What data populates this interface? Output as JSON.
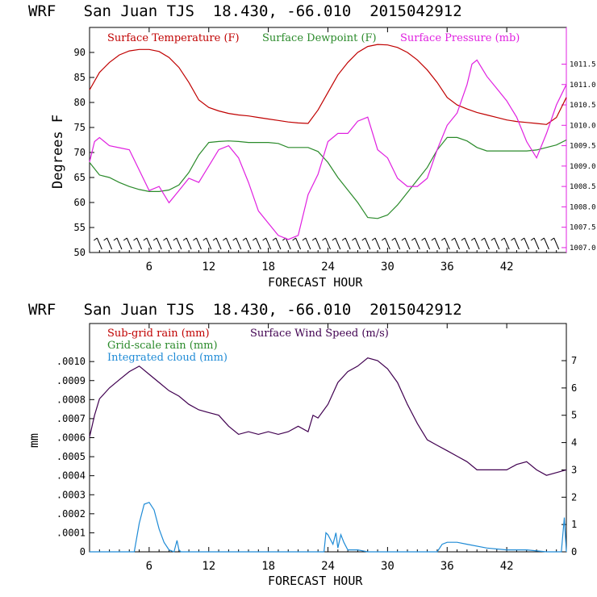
{
  "chart_data": [
    {
      "type": "line",
      "title": "WRF   San Juan TJS  18.430, -66.010  2015042912",
      "xlabel": "FORECAST HOUR",
      "ylabel": "Degrees F",
      "xlim": [
        0,
        48
      ],
      "ylim": [
        50,
        95
      ],
      "xticks": [
        "6",
        "12",
        "18",
        "24",
        "30",
        "36",
        "42"
      ],
      "yticks": [
        "50",
        "55",
        "60",
        "65",
        "70",
        "75",
        "80",
        "85",
        "90"
      ],
      "y2ticks": [
        "1007.0",
        "1007.5",
        "1008.0",
        "1008.5",
        "1009.0",
        "1009.5",
        "1010.0",
        "1010.5",
        "1011.0",
        "1011.5"
      ],
      "y2lim": [
        1006.88,
        1012.4
      ],
      "colors": {
        "temperature": "#c00000",
        "dewpoint": "#2a8a2a",
        "pressure": "#e020e0",
        "axis": "#000000",
        "right_axis": "#e020e0"
      },
      "legend": {
        "temperature": "Surface Temperature (F)",
        "dewpoint": "Surface Dewpoint (F)",
        "pressure": "Surface Pressure (mb)"
      },
      "series": [
        {
          "name": "Surface Temperature (F)",
          "axis": "left",
          "x": [
            0,
            1,
            2,
            3,
            4,
            5,
            6,
            7,
            8,
            9,
            10,
            11,
            12,
            13,
            14,
            15,
            16,
            17,
            18,
            19,
            20,
            21,
            22,
            23,
            24,
            25,
            26,
            27,
            28,
            29,
            30,
            31,
            32,
            33,
            34,
            35,
            36,
            37,
            38,
            39,
            40,
            41,
            42,
            43,
            44,
            45,
            46,
            47,
            48
          ],
          "y": [
            82.5,
            86,
            88,
            89.5,
            90.3,
            90.6,
            90.6,
            90.2,
            89,
            87,
            84,
            80.5,
            79,
            78.3,
            77.8,
            77.5,
            77.3,
            77,
            76.7,
            76.4,
            76.1,
            75.9,
            75.8,
            78.5,
            82,
            85.5,
            88,
            90,
            91.2,
            91.6,
            91.5,
            91,
            90,
            88.5,
            86.5,
            84,
            81,
            79.5,
            78.7,
            78,
            77.5,
            77,
            76.5,
            76.2,
            76,
            75.8,
            75.6,
            77,
            81
          ]
        },
        {
          "name": "Surface Dewpoint (F)",
          "axis": "left",
          "x": [
            0,
            1,
            2,
            3,
            4,
            5,
            6,
            7,
            8,
            9,
            10,
            11,
            12,
            13,
            14,
            15,
            16,
            17,
            18,
            19,
            20,
            21,
            22,
            23,
            24,
            25,
            26,
            27,
            28,
            29,
            30,
            31,
            32,
            33,
            34,
            35,
            36,
            37,
            38,
            39,
            40,
            41,
            42,
            43,
            44,
            45,
            46,
            47,
            48
          ],
          "y": [
            68,
            65.5,
            65,
            64,
            63.2,
            62.6,
            62.2,
            62.2,
            62.5,
            63.5,
            66,
            69.5,
            72,
            72.2,
            72.3,
            72.2,
            72,
            72,
            72,
            71.8,
            71,
            71,
            71,
            70.2,
            68,
            65,
            62.5,
            60,
            57,
            56.8,
            57.5,
            59.5,
            62,
            64.5,
            67,
            70.5,
            73,
            73,
            72.3,
            71,
            70.3,
            70.3,
            70.3,
            70.3,
            70.3,
            70.5,
            71,
            71.5,
            72.5
          ]
        },
        {
          "name": "Surface Pressure (mb)",
          "axis": "right",
          "x": [
            0,
            0.5,
            1,
            2,
            3,
            4,
            5,
            6,
            7,
            8,
            9,
            10,
            11,
            12,
            13,
            14,
            15,
            16,
            17,
            18,
            19,
            20,
            21,
            22,
            23,
            24,
            25,
            26,
            27,
            28,
            29,
            30,
            31,
            32,
            33,
            34,
            35,
            36,
            37,
            38,
            38.5,
            39,
            40,
            41,
            42,
            43,
            44,
            45,
            46,
            47,
            48
          ],
          "y": [
            1009.1,
            1009.6,
            1009.7,
            1009.5,
            1009.45,
            1009.4,
            1008.9,
            1008.4,
            1008.5,
            1008.1,
            1008.4,
            1008.7,
            1008.6,
            1009.0,
            1009.4,
            1009.5,
            1009.2,
            1008.6,
            1007.9,
            1007.6,
            1007.3,
            1007.2,
            1007.3,
            1008.3,
            1008.8,
            1009.6,
            1009.8,
            1009.8,
            1010.1,
            1010.2,
            1009.4,
            1009.2,
            1008.7,
            1008.5,
            1008.5,
            1008.7,
            1009.4,
            1010.0,
            1010.3,
            1011.0,
            1011.5,
            1011.6,
            1011.2,
            1010.9,
            1010.6,
            1010.2,
            1009.6,
            1009.2,
            1009.8,
            1010.5,
            1011.0
          ]
        }
      ],
      "wind_barbs": "row of wind barbs along bottom of plot"
    },
    {
      "type": "line",
      "title": "WRF   San Juan TJS  18.430, -66.010  2015042912",
      "xlabel": "FORECAST HOUR",
      "ylabel": "mm",
      "xlim": [
        0,
        48
      ],
      "ylim": [
        0,
        0.0012
      ],
      "xticks": [
        "6",
        "12",
        "18",
        "24",
        "30",
        "36",
        "42"
      ],
      "yticks": [
        "0",
        ".0001",
        ".0002",
        ".0003",
        ".0004",
        ".0005",
        ".0006",
        ".0007",
        ".0008",
        ".0009",
        ".0010"
      ],
      "y2ticks": [
        "0",
        "1",
        "2",
        "3",
        "4",
        "5",
        "6",
        "7"
      ],
      "y2lim": [
        0,
        8.36
      ],
      "colors": {
        "subgrid": "#c00000",
        "gridscale": "#2a8a2a",
        "cloud": "#1f8bd6",
        "wind": "#400050"
      },
      "legend": {
        "subgrid": "Sub-grid rain (mm)",
        "gridscale": "Grid-scale rain (mm)",
        "cloud": "Integrated cloud (mm)",
        "wind": "Surface Wind Speed (m/s)"
      },
      "series": [
        {
          "name": "Surface Wind Speed (m/s)",
          "axis": "right",
          "x": [
            0,
            0.5,
            1,
            2,
            3,
            4,
            5,
            6,
            7,
            8,
            9,
            10,
            11,
            12,
            13,
            14,
            15,
            16,
            17,
            18,
            19,
            20,
            21,
            22,
            22.5,
            23,
            24,
            25,
            26,
            27,
            28,
            29,
            30,
            31,
            32,
            33,
            34,
            35,
            36,
            37,
            38,
            39,
            40,
            41,
            42,
            43,
            44,
            45,
            46,
            47,
            48
          ],
          "y": [
            4.2,
            5.0,
            5.6,
            6.0,
            6.3,
            6.6,
            6.8,
            6.5,
            6.2,
            5.9,
            5.7,
            5.4,
            5.2,
            5.1,
            5.0,
            4.6,
            4.3,
            4.4,
            4.3,
            4.4,
            4.3,
            4.4,
            4.6,
            4.4,
            5.0,
            4.9,
            5.4,
            6.2,
            6.6,
            6.8,
            7.1,
            7.0,
            6.7,
            6.2,
            5.4,
            4.7,
            4.1,
            3.9,
            3.7,
            3.5,
            3.3,
            3.0,
            3.0,
            3.0,
            3.0,
            3.2,
            3.3,
            3.0,
            2.8,
            2.9,
            3.0
          ]
        },
        {
          "name": "Integrated cloud (mm)",
          "axis": "left",
          "x": [
            0,
            4.5,
            5,
            5.5,
            6,
            6.5,
            7,
            7.5,
            8,
            8.5,
            8.8,
            9,
            9.2,
            10,
            23.6,
            23.8,
            24,
            24.5,
            24.8,
            25,
            25.3,
            25.6,
            26,
            27,
            28,
            35,
            35.5,
            36,
            37,
            38,
            40,
            42,
            44,
            46,
            47.5,
            47.8,
            48
          ],
          "y": [
            0,
            0,
            0.00015,
            0.00025,
            0.00026,
            0.00022,
            0.00012,
            5e-05,
            1e-05,
            0,
            6e-05,
            1e-05,
            0,
            0,
            0,
            0.0001,
            9e-05,
            4e-05,
            0.0001,
            2e-05,
            9e-05,
            5e-05,
            1e-05,
            1e-05,
            0,
            0,
            4e-05,
            5e-05,
            5e-05,
            4e-05,
            2e-05,
            1e-05,
            1e-05,
            0,
            0,
            0.00018,
            0
          ]
        }
      ]
    }
  ]
}
